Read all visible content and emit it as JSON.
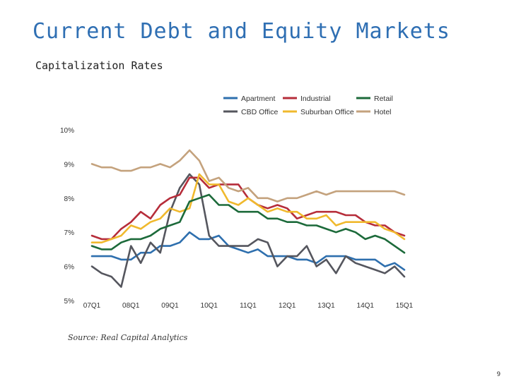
{
  "slide": {
    "title": "Current Debt and Equity Markets",
    "subtitle": "Capitalization Rates",
    "source": "Source: Real Capital Analytics",
    "page_number": "9"
  },
  "colors": {
    "title": "#2f6fb3"
  },
  "chart_data": {
    "type": "line",
    "title": "",
    "xlabel": "",
    "ylabel": "",
    "y_tick_labels": [
      "5%",
      "6%",
      "7%",
      "8%",
      "9%",
      "10%"
    ],
    "y_ticks": [
      5,
      6,
      7,
      8,
      9,
      10
    ],
    "ylim": [
      5,
      10
    ],
    "x_tick_labels": [
      "07Q1",
      "08Q1",
      "09Q1",
      "10Q1",
      "11Q1",
      "12Q1",
      "13Q1",
      "14Q1",
      "15Q1"
    ],
    "x_tick_index": [
      0,
      4,
      8,
      12,
      16,
      20,
      24,
      28,
      32
    ],
    "x": [
      "07Q1",
      "07Q2",
      "07Q3",
      "07Q4",
      "08Q1",
      "08Q2",
      "08Q3",
      "08Q4",
      "09Q1",
      "09Q2",
      "09Q3",
      "09Q4",
      "10Q1",
      "10Q2",
      "10Q3",
      "10Q4",
      "11Q1",
      "11Q2",
      "11Q3",
      "11Q4",
      "12Q1",
      "12Q2",
      "12Q3",
      "12Q4",
      "13Q1",
      "13Q2",
      "13Q3",
      "13Q4",
      "14Q1",
      "14Q2",
      "14Q3",
      "14Q4",
      "15Q1"
    ],
    "grid": false,
    "legend_position": "top",
    "series": [
      {
        "name": "Apartment",
        "color": "#2e6fae",
        "values": [
          6.3,
          6.3,
          6.3,
          6.2,
          6.2,
          6.4,
          6.4,
          6.6,
          6.6,
          6.7,
          7.0,
          6.8,
          6.8,
          6.9,
          6.6,
          6.5,
          6.4,
          6.5,
          6.3,
          6.3,
          6.3,
          6.2,
          6.2,
          6.1,
          6.3,
          6.3,
          6.3,
          6.2,
          6.2,
          6.2,
          6.0,
          6.1,
          5.9
        ]
      },
      {
        "name": "CBD Office",
        "color": "#55565e",
        "values": [
          6.0,
          5.8,
          5.7,
          5.4,
          6.6,
          6.1,
          6.7,
          6.4,
          7.6,
          8.3,
          8.7,
          8.4,
          6.9,
          6.6,
          6.6,
          6.6,
          6.6,
          6.8,
          6.7,
          6.0,
          6.3,
          6.3,
          6.6,
          6.0,
          6.2,
          5.8,
          6.3,
          6.1,
          6.0,
          5.9,
          5.8,
          6.0,
          5.7
        ]
      },
      {
        "name": "Industrial",
        "color": "#b62d3a",
        "values": [
          6.9,
          6.8,
          6.8,
          7.1,
          7.3,
          7.6,
          7.4,
          7.8,
          8.0,
          8.1,
          8.6,
          8.6,
          8.3,
          8.4,
          8.4,
          8.4,
          8.0,
          7.8,
          7.7,
          7.8,
          7.7,
          7.4,
          7.5,
          7.6,
          7.6,
          7.6,
          7.5,
          7.5,
          7.3,
          7.2,
          7.2,
          7.0,
          6.9
        ]
      },
      {
        "name": "Suburban Office",
        "color": "#f0b92d",
        "values": [
          6.7,
          6.7,
          6.8,
          6.9,
          7.2,
          7.1,
          7.3,
          7.4,
          7.7,
          7.6,
          7.7,
          8.7,
          8.4,
          8.4,
          7.9,
          7.8,
          8.0,
          7.8,
          7.6,
          7.7,
          7.6,
          7.6,
          7.4,
          7.4,
          7.5,
          7.2,
          7.3,
          7.3,
          7.3,
          7.3,
          7.1,
          7.0,
          6.8
        ]
      },
      {
        "name": "Retail",
        "color": "#1c6a3a",
        "values": [
          6.6,
          6.5,
          6.5,
          6.7,
          6.8,
          6.8,
          6.9,
          7.1,
          7.2,
          7.3,
          7.9,
          8.0,
          8.1,
          7.8,
          7.8,
          7.6,
          7.6,
          7.6,
          7.4,
          7.4,
          7.3,
          7.3,
          7.2,
          7.2,
          7.1,
          7.0,
          7.1,
          7.0,
          6.8,
          6.9,
          6.8,
          6.6,
          6.4
        ]
      },
      {
        "name": "Hotel",
        "color": "#c4a27d",
        "values": [
          9.0,
          8.9,
          8.9,
          8.8,
          8.8,
          8.9,
          8.9,
          9.0,
          8.9,
          9.1,
          9.4,
          9.1,
          8.5,
          8.6,
          8.3,
          8.2,
          8.3,
          8.0,
          8.0,
          7.9,
          8.0,
          8.0,
          8.1,
          8.2,
          8.1,
          8.2,
          8.2,
          8.2,
          8.2,
          8.2,
          8.2,
          8.2,
          8.1
        ]
      }
    ]
  }
}
